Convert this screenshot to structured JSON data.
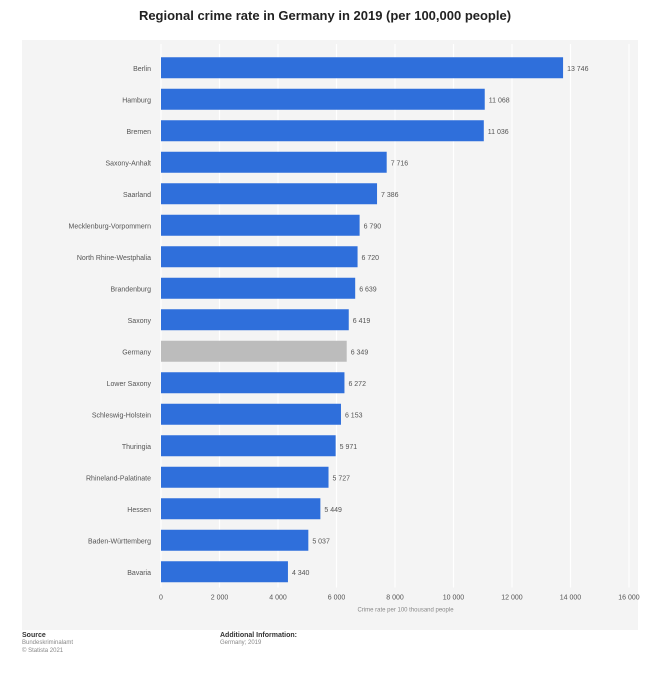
{
  "chart_data": {
    "type": "bar",
    "orientation": "horizontal",
    "title": "Regional crime rate in Germany in 2019 (per 100,000 people)",
    "xlabel": "Crime rate per 100 thousand people",
    "xlim": [
      0,
      16000
    ],
    "xticks": [
      "0",
      "2 000",
      "4 000",
      "6 000",
      "8 000",
      "10 000",
      "12 000",
      "14 000",
      "16 000"
    ],
    "grid": true,
    "categories": [
      "Berlin",
      "Hamburg",
      "Bremen",
      "Saxony-Anhalt",
      "Saarland",
      "Mecklenburg-Vorpommern",
      "North Rhine-Westphalia",
      "Brandenburg",
      "Saxony",
      "Germany",
      "Lower Saxony",
      "Schleswig-Holstein",
      "Thuringia",
      "Rhineland-Palatinate",
      "Hessen",
      "Baden-Württemberg",
      "Bavaria"
    ],
    "values": [
      13746,
      11068,
      11036,
      7716,
      7386,
      6790,
      6720,
      6639,
      6419,
      6349,
      6272,
      6153,
      5971,
      5727,
      5449,
      5037,
      4340
    ],
    "value_labels": [
      "13 746",
      "11 068",
      "11 036",
      "7 716",
      "7 386",
      "6 790",
      "6 720",
      "6 639",
      "6 419",
      "6 349",
      "6 272",
      "6 153",
      "5 971",
      "5 727",
      "5 449",
      "5 037",
      "4 340"
    ],
    "highlight_category": "Germany",
    "colors": {
      "bar": "#2f6fdb",
      "highlight": "#bcbcbc",
      "grid": "#ffffff",
      "text": "#555555"
    }
  },
  "footer": {
    "source_label": "Source",
    "source_lines": [
      "Bundeskriminalamt",
      "© Statista 2021"
    ],
    "info_label": "Additional Information:",
    "info_lines": [
      "Germany; 2019"
    ]
  }
}
